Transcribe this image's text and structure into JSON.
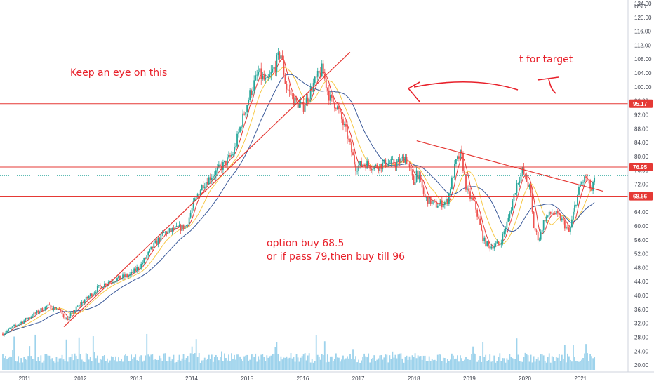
{
  "chart_data": {
    "type": "candlestick",
    "currency": "USD",
    "y_axis": {
      "min": 18,
      "max": 125,
      "ticks": [
        20,
        24,
        28,
        32,
        36,
        40,
        44,
        48,
        52,
        56,
        60,
        64,
        68,
        72,
        76,
        80,
        84,
        88,
        92,
        96,
        100,
        104,
        108,
        112,
        116,
        120,
        124
      ]
    },
    "x_axis": {
      "labels": [
        "2011",
        "2012",
        "2013",
        "2014",
        "2015",
        "2016",
        "2017",
        "2018",
        "2019",
        "2020",
        "2021"
      ],
      "start": 2010.6,
      "end": 2021.4
    },
    "grid": false,
    "price_series": [
      [
        2010.6,
        29
      ],
      [
        2010.8,
        31
      ],
      [
        2011.0,
        33
      ],
      [
        2011.2,
        35
      ],
      [
        2011.4,
        37
      ],
      [
        2011.6,
        36
      ],
      [
        2011.75,
        33
      ],
      [
        2011.9,
        36
      ],
      [
        2012.1,
        39
      ],
      [
        2012.3,
        42
      ],
      [
        2012.5,
        44
      ],
      [
        2012.7,
        45
      ],
      [
        2012.9,
        46
      ],
      [
        2013.1,
        49
      ],
      [
        2013.3,
        54
      ],
      [
        2013.5,
        58
      ],
      [
        2013.7,
        59
      ],
      [
        2013.9,
        60
      ],
      [
        2014.05,
        67
      ],
      [
        2014.2,
        72
      ],
      [
        2014.4,
        75
      ],
      [
        2014.6,
        78
      ],
      [
        2014.75,
        81
      ],
      [
        2014.9,
        90
      ],
      [
        2015.05,
        98
      ],
      [
        2015.2,
        104
      ],
      [
        2015.35,
        101
      ],
      [
        2015.5,
        106
      ],
      [
        2015.6,
        110
      ],
      [
        2015.7,
        100
      ],
      [
        2015.85,
        96
      ],
      [
        2016.0,
        94
      ],
      [
        2016.2,
        101
      ],
      [
        2016.35,
        105
      ],
      [
        2016.5,
        96
      ],
      [
        2016.6,
        95
      ],
      [
        2016.8,
        86
      ],
      [
        2016.95,
        77
      ],
      [
        2017.1,
        78
      ],
      [
        2017.3,
        77
      ],
      [
        2017.5,
        78
      ],
      [
        2017.7,
        78
      ],
      [
        2017.85,
        80
      ],
      [
        2018.0,
        72
      ],
      [
        2018.05,
        76
      ],
      [
        2018.2,
        68
      ],
      [
        2018.4,
        66
      ],
      [
        2018.6,
        67
      ],
      [
        2018.75,
        78
      ],
      [
        2018.85,
        81
      ],
      [
        2018.95,
        70
      ],
      [
        2019.1,
        66
      ],
      [
        2019.25,
        56
      ],
      [
        2019.35,
        54
      ],
      [
        2019.55,
        55
      ],
      [
        2019.7,
        62
      ],
      [
        2019.85,
        72
      ],
      [
        2019.95,
        76
      ],
      [
        2020.1,
        70
      ],
      [
        2020.15,
        60
      ],
      [
        2020.25,
        56
      ],
      [
        2020.35,
        62
      ],
      [
        2020.5,
        64
      ],
      [
        2020.65,
        62
      ],
      [
        2020.8,
        58
      ],
      [
        2020.9,
        66
      ],
      [
        2021.0,
        72
      ],
      [
        2021.1,
        74
      ],
      [
        2021.2,
        70
      ],
      [
        2021.25,
        73
      ]
    ],
    "price_levels": [
      {
        "label": "95.17",
        "value": 95.17
      },
      {
        "label": "76.95",
        "value": 76.95
      },
      {
        "label": "68.56",
        "value": 68.56
      }
    ],
    "current_price": 74.4,
    "trendlines": [
      {
        "from": [
          2011.7,
          31
        ],
        "to": [
          2016.85,
          110
        ],
        "extend": false
      },
      {
        "from": [
          2018.05,
          84.5
        ],
        "to": [
          2021.4,
          70
        ],
        "extend": false
      }
    ],
    "annotations": [
      {
        "text": "Keep an eye on this"
      },
      {
        "text": "t for target"
      },
      {
        "text": "option buy 68.5"
      },
      {
        "text": "or if pass 79,then buy till 96"
      }
    ]
  },
  "colors": {
    "up": "#26a69a",
    "down": "#ef5350",
    "annotation": "#e8202a",
    "ma_fast": "#e53935",
    "ma_mid": "#f7c948",
    "ma_slow": "#3b5a9a",
    "volume": "#7ec4e6"
  }
}
